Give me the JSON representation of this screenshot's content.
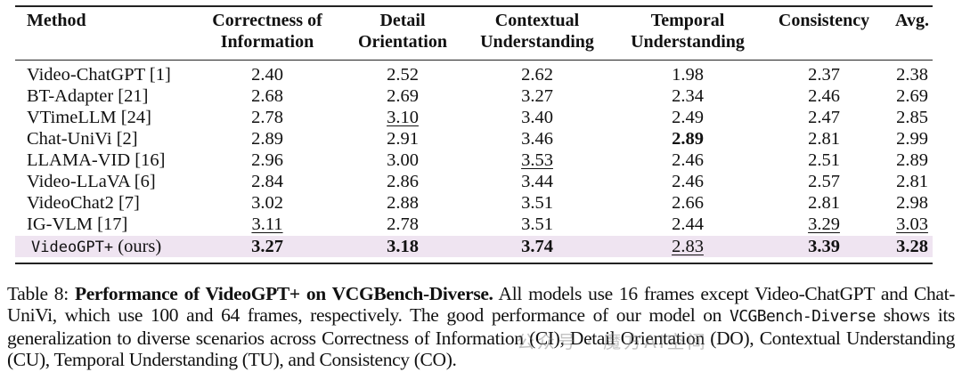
{
  "table": {
    "headers": [
      {
        "line1": "Method",
        "line2": ""
      },
      {
        "line1": "Correctness of",
        "line2": "Information"
      },
      {
        "line1": "Detail",
        "line2": "Orientation"
      },
      {
        "line1": "Contextual",
        "line2": "Understanding"
      },
      {
        "line1": "Temporal",
        "line2": "Understanding"
      },
      {
        "line1": "Consistency",
        "line2": ""
      },
      {
        "line1": "Avg.",
        "line2": ""
      }
    ],
    "rows": [
      {
        "method": "Video-ChatGPT [1]",
        "values": [
          "2.40",
          "2.52",
          "2.62",
          "1.98",
          "2.37",
          "2.38"
        ],
        "styles": [
          "",
          "",
          "",
          "",
          "",
          ""
        ]
      },
      {
        "method": "BT-Adapter [21]",
        "values": [
          "2.68",
          "2.69",
          "3.27",
          "2.34",
          "2.46",
          "2.69"
        ],
        "styles": [
          "",
          "",
          "",
          "",
          "",
          ""
        ]
      },
      {
        "method": "VTimeLLM [24]",
        "values": [
          "2.78",
          "3.10",
          "3.40",
          "2.49",
          "2.47",
          "2.85"
        ],
        "styles": [
          "",
          "u",
          "",
          "",
          "",
          ""
        ]
      },
      {
        "method": "Chat-UniVi [2]",
        "values": [
          "2.89",
          "2.91",
          "3.46",
          "2.89",
          "2.81",
          "2.99"
        ],
        "styles": [
          "",
          "",
          "",
          "b",
          "",
          ""
        ]
      },
      {
        "method": "LLAMA-VID [16]",
        "values": [
          "2.96",
          "3.00",
          "3.53",
          "2.46",
          "2.51",
          "2.89"
        ],
        "styles": [
          "",
          "",
          "u",
          "",
          "",
          ""
        ]
      },
      {
        "method": "Video-LLaVA [6]",
        "values": [
          "2.84",
          "2.86",
          "3.44",
          "2.46",
          "2.57",
          "2.81"
        ],
        "styles": [
          "",
          "",
          "",
          "",
          "",
          ""
        ]
      },
      {
        "method": "VideoChat2 [7]",
        "values": [
          "3.02",
          "2.88",
          "3.51",
          "2.66",
          "2.81",
          "2.98"
        ],
        "styles": [
          "",
          "",
          "",
          "",
          "",
          ""
        ]
      },
      {
        "method": "IG-VLM [17]",
        "values": [
          "3.11",
          "2.78",
          "3.51",
          "2.44",
          "3.29",
          "3.03"
        ],
        "styles": [
          "u",
          "",
          "",
          "",
          "u",
          "u"
        ]
      },
      {
        "method": "VideoGPT+",
        "method_suffix": " (ours)",
        "highlight": true,
        "values": [
          "3.27",
          "3.18",
          "3.74",
          "2.83",
          "3.39",
          "3.28"
        ],
        "styles": [
          "b",
          "b",
          "b",
          "u",
          "b",
          "b"
        ]
      }
    ],
    "highlight_color": "#efe4f1"
  },
  "caption": {
    "label": "Table 8: ",
    "title": "Performance of  VideoGPT+ on VCGBench-Diverse.",
    "text1": " All models use 16 frames except Video-ChatGPT and Chat-UniVi, which use 100 and 64 frames, respectively. The good performance of our model on ",
    "mono": "VCGBench-Diverse",
    "text2": " shows its generalization to diverse scenarios across Correctness of Information (CI), Detail Orientation (DO), Contextual Understanding (CU), Temporal Understanding (TU), and Consistency (CO)."
  },
  "watermark": "公众号 · 魔方AI空间"
}
